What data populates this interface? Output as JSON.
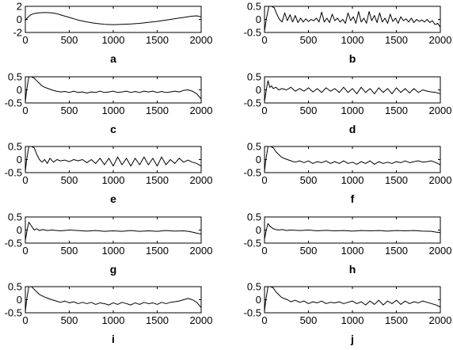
{
  "chart_data": [
    {
      "type": "line",
      "label": "a",
      "xlim": [
        0,
        2000
      ],
      "ylim": [
        -2,
        2
      ],
      "xticks": [
        "0",
        "500",
        "1000",
        "1500",
        "2000"
      ],
      "yticks": [
        "2",
        "0",
        "-2"
      ],
      "x": [
        0,
        20,
        60,
        100,
        150,
        200,
        250,
        300,
        350,
        400,
        500,
        600,
        700,
        800,
        900,
        1000,
        1100,
        1200,
        1300,
        1400,
        1500,
        1600,
        1700,
        1800,
        1900,
        1950,
        2000
      ],
      "y": [
        -0.2,
        0.2,
        0.7,
        0.9,
        1.0,
        1.05,
        1.05,
        1.0,
        0.9,
        0.7,
        0.3,
        -0.1,
        -0.4,
        -0.6,
        -0.75,
        -0.8,
        -0.75,
        -0.7,
        -0.6,
        -0.45,
        -0.3,
        -0.1,
        0.1,
        0.3,
        0.5,
        0.55,
        0.4
      ]
    },
    {
      "type": "line",
      "label": "b",
      "xlim": [
        0,
        2000
      ],
      "ylim": [
        -0.5,
        0.5
      ],
      "xticks": [
        "0",
        "500",
        "1000",
        "1500",
        "2000"
      ],
      "yticks": [
        "0.5",
        "0",
        "-0.5"
      ],
      "x": [
        0,
        20,
        50,
        80,
        110,
        140,
        170,
        200,
        230,
        260,
        290,
        320,
        350,
        380,
        410,
        440,
        470,
        500,
        530,
        560,
        590,
        620,
        650,
        680,
        710,
        740,
        770,
        800,
        830,
        860,
        890,
        920,
        950,
        980,
        1010,
        1040,
        1070,
        1100,
        1130,
        1160,
        1190,
        1220,
        1250,
        1280,
        1310,
        1340,
        1370,
        1400,
        1430,
        1460,
        1490,
        1520,
        1550,
        1580,
        1610,
        1640,
        1670,
        1700,
        1730,
        1760,
        1790,
        1820,
        1850,
        1880,
        1910,
        1940,
        1970,
        2000
      ],
      "y": [
        -0.45,
        0.0,
        0.5,
        0.5,
        0.45,
        0.2,
        0.0,
        -0.1,
        0.25,
        -0.05,
        0.18,
        -0.1,
        0.15,
        -0.12,
        0.05,
        -0.1,
        0.02,
        -0.08,
        0.0,
        -0.05,
        0.05,
        -0.1,
        0.28,
        -0.1,
        0.05,
        -0.12,
        0.2,
        -0.05,
        0.05,
        -0.1,
        0.0,
        -0.15,
        0.25,
        -0.05,
        0.1,
        -0.15,
        0.3,
        -0.1,
        0.05,
        -0.15,
        0.3,
        -0.05,
        0.15,
        -0.12,
        0.25,
        -0.1,
        0.05,
        -0.15,
        0.2,
        -0.08,
        0.05,
        -0.15,
        0.1,
        -0.05,
        0.02,
        -0.1,
        0.05,
        -0.12,
        0.0,
        -0.08,
        -0.02,
        -0.1,
        0.0,
        -0.12,
        -0.05,
        -0.2,
        -0.15,
        -0.3
      ]
    },
    {
      "type": "line",
      "label": "c",
      "xlim": [
        0,
        2000
      ],
      "ylim": [
        -0.5,
        0.5
      ],
      "xticks": [
        "0",
        "500",
        "1000",
        "1500",
        "2000"
      ],
      "yticks": [
        "0.5",
        "0",
        "-0.5"
      ],
      "x": [
        0,
        15,
        40,
        70,
        100,
        130,
        160,
        190,
        220,
        260,
        300,
        350,
        400,
        450,
        500,
        550,
        600,
        650,
        700,
        750,
        800,
        850,
        900,
        950,
        1000,
        1050,
        1100,
        1150,
        1200,
        1250,
        1300,
        1350,
        1400,
        1450,
        1500,
        1550,
        1600,
        1650,
        1700,
        1750,
        1800,
        1850,
        1900,
        1950,
        1975,
        2000
      ],
      "y": [
        -0.45,
        0.0,
        0.5,
        0.5,
        0.45,
        0.35,
        0.25,
        0.15,
        0.1,
        0.05,
        0.0,
        -0.05,
        -0.08,
        -0.06,
        -0.1,
        -0.05,
        -0.1,
        -0.08,
        -0.12,
        -0.08,
        -0.1,
        -0.05,
        -0.1,
        -0.08,
        -0.05,
        -0.1,
        -0.08,
        -0.05,
        -0.1,
        -0.06,
        -0.1,
        -0.05,
        -0.08,
        -0.05,
        -0.1,
        -0.06,
        -0.1,
        -0.08,
        -0.05,
        -0.08,
        -0.02,
        0.0,
        -0.05,
        -0.15,
        -0.25,
        -0.35
      ]
    },
    {
      "type": "line",
      "label": "d",
      "xlim": [
        0,
        2000
      ],
      "ylim": [
        -0.5,
        0.5
      ],
      "xticks": [
        "0",
        "500",
        "1000",
        "1500",
        "2000"
      ],
      "yticks": [
        "0.5",
        "0",
        "-0.5"
      ],
      "x": [
        0,
        20,
        40,
        60,
        80,
        100,
        130,
        160,
        200,
        250,
        300,
        350,
        400,
        450,
        500,
        550,
        600,
        650,
        700,
        750,
        800,
        850,
        900,
        950,
        1000,
        1050,
        1100,
        1150,
        1200,
        1250,
        1300,
        1350,
        1400,
        1450,
        1500,
        1550,
        1600,
        1650,
        1700,
        1750,
        1800,
        1850,
        1900,
        1950,
        2000
      ],
      "y": [
        -0.45,
        0.0,
        0.35,
        0.1,
        0.15,
        0.05,
        0.1,
        0.0,
        0.05,
        0.0,
        0.1,
        -0.05,
        0.05,
        -0.05,
        0.08,
        -0.08,
        0.05,
        -0.1,
        0.08,
        -0.05,
        0.05,
        -0.1,
        0.1,
        -0.1,
        0.05,
        -0.15,
        0.1,
        -0.1,
        0.05,
        -0.15,
        0.08,
        -0.1,
        0.05,
        -0.15,
        0.08,
        -0.1,
        0.05,
        -0.12,
        0.05,
        -0.1,
        0.0,
        -0.05,
        -0.08,
        -0.1,
        -0.15
      ]
    },
    {
      "type": "line",
      "label": "e",
      "xlim": [
        0,
        2000
      ],
      "ylim": [
        -0.5,
        0.5
      ],
      "xticks": [
        "0",
        "500",
        "1000",
        "1500",
        "2000"
      ],
      "yticks": [
        "0.5",
        "0",
        "-0.5"
      ],
      "x": [
        0,
        15,
        40,
        70,
        100,
        130,
        160,
        190,
        220,
        250,
        280,
        320,
        360,
        400,
        450,
        500,
        550,
        600,
        650,
        700,
        750,
        800,
        850,
        900,
        950,
        1000,
        1050,
        1100,
        1150,
        1200,
        1250,
        1300,
        1350,
        1400,
        1450,
        1500,
        1550,
        1600,
        1650,
        1700,
        1750,
        1800,
        1850,
        1900,
        1950,
        2000
      ],
      "y": [
        -0.45,
        0.0,
        0.5,
        0.5,
        0.45,
        0.2,
        0.0,
        -0.1,
        0.0,
        -0.15,
        0.05,
        -0.1,
        0.0,
        -0.05,
        -0.02,
        -0.08,
        0.0,
        -0.05,
        0.0,
        -0.12,
        0.0,
        -0.15,
        0.05,
        -0.2,
        0.05,
        -0.25,
        0.1,
        -0.2,
        0.05,
        -0.25,
        0.05,
        -0.2,
        0.1,
        -0.2,
        0.05,
        -0.25,
        0.1,
        -0.2,
        0.0,
        -0.15,
        0.05,
        -0.1,
        -0.02,
        -0.1,
        -0.15,
        -0.25
      ]
    },
    {
      "type": "line",
      "label": "f",
      "xlim": [
        0,
        2000
      ],
      "ylim": [
        -0.5,
        0.5
      ],
      "xticks": [
        "0",
        "500",
        "1000",
        "1500",
        "2000"
      ],
      "yticks": [
        "0.5",
        "0",
        "-0.5"
      ],
      "x": [
        0,
        15,
        40,
        70,
        100,
        130,
        160,
        190,
        220,
        260,
        300,
        350,
        400,
        450,
        500,
        550,
        600,
        650,
        700,
        750,
        800,
        850,
        900,
        950,
        1000,
        1050,
        1100,
        1150,
        1200,
        1250,
        1300,
        1350,
        1400,
        1450,
        1500,
        1550,
        1600,
        1650,
        1700,
        1750,
        1800,
        1850,
        1900,
        1950,
        2000
      ],
      "y": [
        -0.45,
        0.0,
        0.5,
        0.5,
        0.45,
        0.3,
        0.2,
        0.1,
        0.05,
        0.0,
        -0.05,
        -0.1,
        -0.05,
        -0.12,
        -0.05,
        -0.15,
        -0.08,
        -0.12,
        -0.05,
        -0.15,
        -0.08,
        -0.15,
        -0.05,
        -0.15,
        -0.1,
        -0.18,
        -0.08,
        -0.15,
        -0.05,
        -0.18,
        -0.08,
        -0.15,
        -0.1,
        -0.15,
        -0.08,
        -0.12,
        -0.05,
        -0.12,
        -0.08,
        -0.05,
        -0.1,
        -0.08,
        -0.05,
        -0.12,
        -0.2
      ]
    },
    {
      "type": "line",
      "label": "g",
      "xlim": [
        0,
        2000
      ],
      "ylim": [
        -0.5,
        0.5
      ],
      "xticks": [
        "0",
        "500",
        "1000",
        "1500",
        "2000"
      ],
      "yticks": [
        "0.5",
        "0",
        "-0.5"
      ],
      "x": [
        0,
        20,
        40,
        60,
        80,
        100,
        130,
        160,
        200,
        250,
        300,
        400,
        500,
        600,
        700,
        800,
        900,
        1000,
        1100,
        1200,
        1300,
        1400,
        1500,
        1600,
        1700,
        1800,
        1850,
        1900,
        1950,
        2000
      ],
      "y": [
        -0.4,
        0.0,
        0.3,
        0.2,
        0.1,
        0.0,
        0.05,
        -0.02,
        0.02,
        -0.02,
        0.0,
        -0.03,
        0.0,
        -0.02,
        -0.04,
        -0.02,
        -0.05,
        -0.03,
        -0.05,
        -0.02,
        -0.05,
        -0.03,
        -0.05,
        -0.02,
        -0.04,
        -0.03,
        -0.05,
        -0.08,
        -0.12,
        -0.15
      ]
    },
    {
      "type": "line",
      "label": "h",
      "xlim": [
        0,
        2000
      ],
      "ylim": [
        -0.5,
        0.5
      ],
      "xticks": [
        "0",
        "500",
        "1000",
        "1500",
        "2000"
      ],
      "yticks": [
        "0.5",
        "0",
        "-0.5"
      ],
      "x": [
        0,
        20,
        40,
        60,
        80,
        100,
        130,
        160,
        200,
        250,
        300,
        400,
        500,
        600,
        700,
        800,
        900,
        1000,
        1100,
        1200,
        1300,
        1400,
        1500,
        1600,
        1700,
        1800,
        1900,
        1950,
        2000
      ],
      "y": [
        -0.35,
        0.0,
        0.25,
        0.15,
        0.1,
        0.05,
        0.02,
        0.0,
        0.02,
        -0.02,
        0.0,
        -0.02,
        0.0,
        -0.03,
        -0.01,
        -0.03,
        -0.02,
        -0.04,
        -0.02,
        -0.03,
        -0.02,
        -0.04,
        -0.02,
        -0.03,
        -0.02,
        -0.04,
        -0.05,
        -0.08,
        -0.1
      ]
    },
    {
      "type": "line",
      "label": "i",
      "xlim": [
        0,
        2000
      ],
      "ylim": [
        -0.5,
        0.5
      ],
      "xticks": [
        "0",
        "500",
        "1000",
        "1500",
        "2000"
      ],
      "yticks": [
        "0.5",
        "0",
        "-0.5"
      ],
      "x": [
        0,
        15,
        40,
        70,
        100,
        130,
        160,
        190,
        220,
        260,
        300,
        350,
        400,
        450,
        500,
        550,
        600,
        650,
        700,
        750,
        800,
        850,
        900,
        950,
        1000,
        1050,
        1100,
        1150,
        1200,
        1250,
        1300,
        1350,
        1400,
        1450,
        1500,
        1550,
        1600,
        1650,
        1700,
        1750,
        1800,
        1850,
        1900,
        1950,
        2000
      ],
      "y": [
        -0.45,
        0.0,
        0.5,
        0.5,
        0.4,
        0.3,
        0.2,
        0.15,
        0.1,
        0.05,
        0.0,
        -0.05,
        -0.1,
        -0.05,
        -0.12,
        -0.08,
        -0.15,
        -0.1,
        -0.15,
        -0.1,
        -0.18,
        -0.12,
        -0.15,
        -0.2,
        -0.12,
        -0.18,
        -0.1,
        -0.15,
        -0.2,
        -0.12,
        -0.18,
        -0.1,
        -0.15,
        -0.12,
        -0.18,
        -0.1,
        -0.15,
        -0.1,
        -0.08,
        -0.05,
        0.0,
        0.05,
        0.0,
        -0.1,
        -0.3
      ]
    },
    {
      "type": "line",
      "label": "j",
      "xlim": [
        0,
        2000
      ],
      "ylim": [
        -0.5,
        0.5
      ],
      "xticks": [
        "0",
        "500",
        "1000",
        "1500",
        "2000"
      ],
      "yticks": [
        "0.5",
        "0",
        "-0.5"
      ],
      "x": [
        0,
        15,
        40,
        70,
        100,
        130,
        160,
        190,
        220,
        260,
        300,
        350,
        400,
        450,
        500,
        550,
        600,
        650,
        700,
        750,
        800,
        850,
        900,
        950,
        1000,
        1050,
        1100,
        1150,
        1200,
        1250,
        1300,
        1350,
        1400,
        1450,
        1500,
        1550,
        1600,
        1650,
        1700,
        1750,
        1800,
        1850,
        1900,
        1950,
        2000
      ],
      "y": [
        -0.45,
        0.0,
        0.5,
        0.5,
        0.45,
        0.3,
        0.2,
        0.1,
        0.05,
        0.0,
        -0.08,
        -0.02,
        -0.1,
        -0.05,
        -0.15,
        -0.08,
        -0.12,
        -0.05,
        -0.15,
        -0.1,
        -0.12,
        -0.08,
        -0.15,
        -0.1,
        -0.05,
        -0.15,
        -0.08,
        -0.2,
        -0.05,
        -0.18,
        -0.02,
        -0.2,
        -0.05,
        -0.15,
        -0.02,
        -0.18,
        -0.05,
        -0.15,
        -0.08,
        -0.12,
        -0.05,
        -0.1,
        -0.15,
        -0.2,
        -0.28
      ]
    }
  ]
}
